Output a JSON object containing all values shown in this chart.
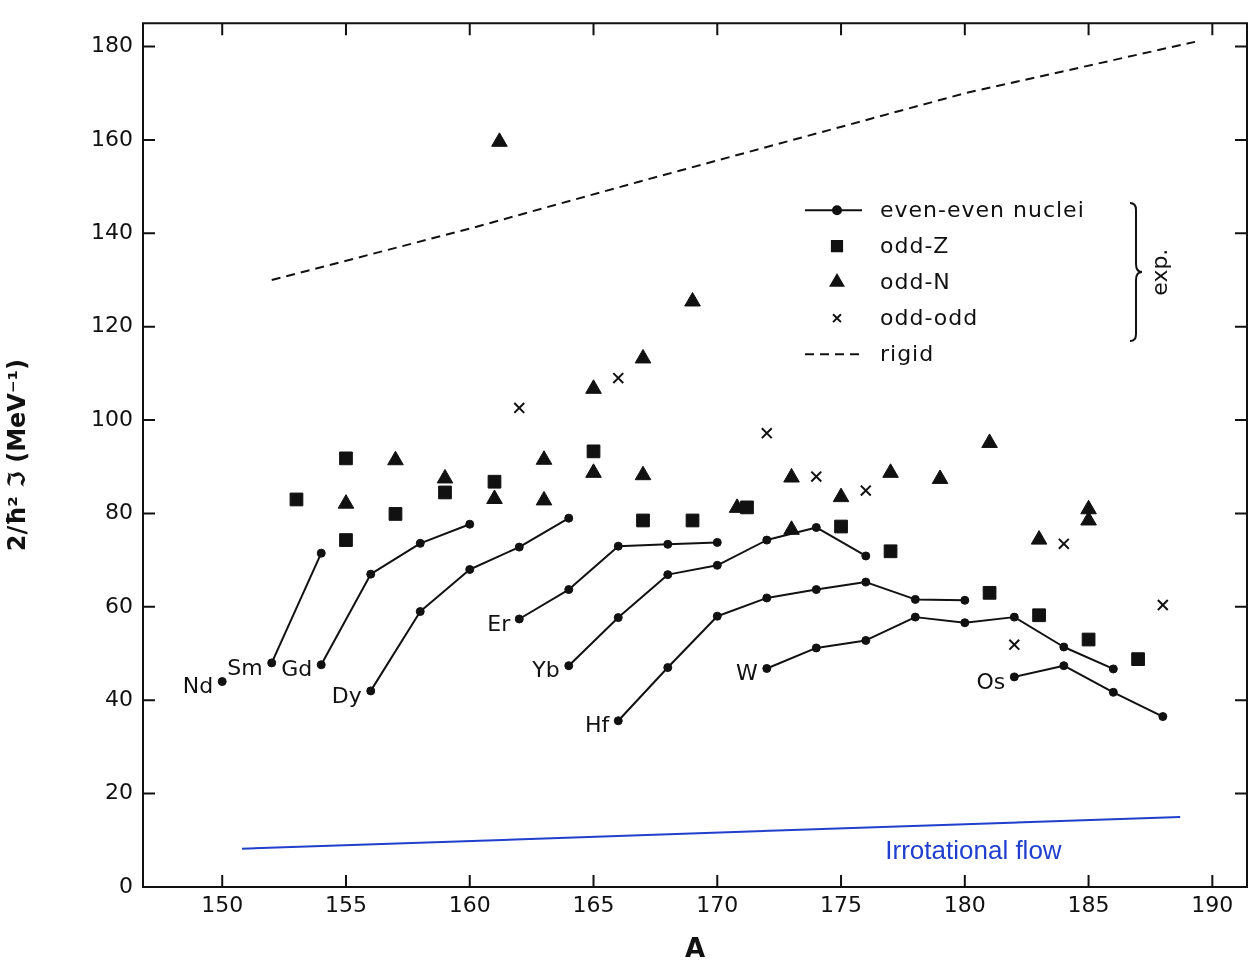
{
  "chart_data": {
    "type": "line",
    "xlabel": "A",
    "ylabel": "2/ħ² ℑ (MeV⁻¹)",
    "xlim": [
      146.8,
      191.4
    ],
    "ylim": [
      0,
      185
    ],
    "xticks": [
      150,
      155,
      160,
      165,
      170,
      175,
      180,
      185,
      190
    ],
    "yticks": [
      0,
      20,
      40,
      60,
      80,
      100,
      120,
      140,
      160,
      180
    ],
    "grid": false,
    "legend": "top right",
    "series": [
      {
        "name": "even-even nuclei",
        "marker": "circle",
        "color": "#111111",
        "x": [
          150
        ],
        "values": [
          44
        ]
      },
      {
        "marker": "circle",
        "color": "#111111",
        "x": [
          152,
          154
        ],
        "values": [
          48,
          71.5
        ]
      },
      {
        "marker": "circle",
        "color": "#111111",
        "x": [
          154,
          156,
          158,
          160
        ],
        "values": [
          47.6,
          67,
          73.6,
          77.7
        ]
      },
      {
        "marker": "circle",
        "color": "#111111",
        "x": [
          156,
          158,
          160,
          162,
          164
        ],
        "values": [
          42,
          59,
          68,
          72.8,
          79
        ]
      },
      {
        "marker": "circle",
        "color": "#111111",
        "x": [
          162,
          164,
          166,
          168,
          170
        ],
        "values": [
          57.4,
          63.7,
          73,
          73.4,
          73.8
        ]
      },
      {
        "marker": "circle",
        "color": "#111111",
        "x": [
          164,
          166,
          168,
          170,
          172,
          174,
          176
        ],
        "values": [
          47.4,
          57.7,
          66.9,
          68.9,
          74.3,
          77,
          70.9
        ]
      },
      {
        "marker": "circle",
        "color": "#111111",
        "x": [
          166,
          168,
          170,
          172,
          174,
          176,
          178,
          180
        ],
        "values": [
          35.6,
          47,
          58,
          61.9,
          63.7,
          65.3,
          61.6,
          61.4
        ]
      },
      {
        "marker": "circle",
        "color": "#111111",
        "x": [
          172,
          174,
          176,
          178,
          180,
          182,
          184,
          186
        ],
        "values": [
          46.8,
          51.2,
          52.8,
          57.8,
          56.6,
          57.8,
          51.4,
          46.7
        ]
      },
      {
        "marker": "circle",
        "color": "#111111",
        "x": [
          182,
          184,
          186,
          188
        ],
        "values": [
          45,
          47.4,
          41.7,
          36.5
        ]
      },
      {
        "name": "odd-Z",
        "type": "scatter",
        "marker": "square",
        "color": "#111111",
        "x": [
          153,
          155,
          155,
          157,
          159,
          161,
          165,
          167,
          169,
          171.2,
          175,
          177,
          181,
          183,
          185,
          187
        ],
        "values": [
          83,
          91.8,
          74.3,
          79.9,
          84.5,
          86.8,
          93.3,
          78.5,
          78.5,
          81.3,
          77.2,
          71.9,
          63,
          58.2,
          53,
          48.8
        ]
      },
      {
        "name": "odd-N",
        "type": "scatter",
        "marker": "triangle",
        "color": "#111111",
        "x": [
          161.2,
          157,
          155,
          159,
          161,
          163,
          163,
          165,
          165,
          167,
          167,
          169,
          170.8,
          173,
          173,
          175,
          177,
          179,
          181,
          183,
          185,
          185
        ],
        "values": [
          159.6,
          91.4,
          82.1,
          87.5,
          83.1,
          91.5,
          82.8,
          88.7,
          106.7,
          88.2,
          113.2,
          125.4,
          81.2,
          87.7,
          76.5,
          83.5,
          88.7,
          87.4,
          95.1,
          74.4,
          80.9,
          78.5
        ]
      },
      {
        "name": "odd-odd",
        "type": "scatter",
        "marker": "cross",
        "color": "#111111",
        "x": [
          162,
          166,
          172,
          174,
          176,
          182,
          184,
          188
        ],
        "values": [
          102.6,
          109,
          97.2,
          87.9,
          84.9,
          51.9,
          73.5,
          60.4
        ]
      },
      {
        "name": "rigid",
        "marker": "none",
        "line_style": "dashed",
        "color": "#111111",
        "x": [
          152,
          160,
          166.8,
          180,
          189.3
        ],
        "values": [
          130,
          141,
          151,
          170,
          181
        ]
      },
      {
        "marker": "none",
        "color": "#1f3fcc",
        "x": [
          150.8,
          188.7
        ],
        "values": [
          8.2,
          15
        ]
      }
    ],
    "annotations": [
      {
        "text": "Nd",
        "x": 150,
        "y": 44
      },
      {
        "text": "Sm",
        "x": 152,
        "y": 48
      },
      {
        "text": "Gd",
        "x": 154,
        "y": 47.6
      },
      {
        "text": "Dy",
        "x": 156,
        "y": 42
      },
      {
        "text": "Er",
        "x": 162,
        "y": 57.4
      },
      {
        "text": "Yb",
        "x": 164,
        "y": 47.4
      },
      {
        "text": "Hf",
        "x": 166,
        "y": 35.6
      },
      {
        "text": "W",
        "x": 172,
        "y": 46.8
      },
      {
        "text": "Os",
        "x": 182,
        "y": 45
      },
      {
        "text": "Irrotational flow",
        "x": 180.35,
        "y": 13.5
      },
      "exp."
    ]
  }
}
